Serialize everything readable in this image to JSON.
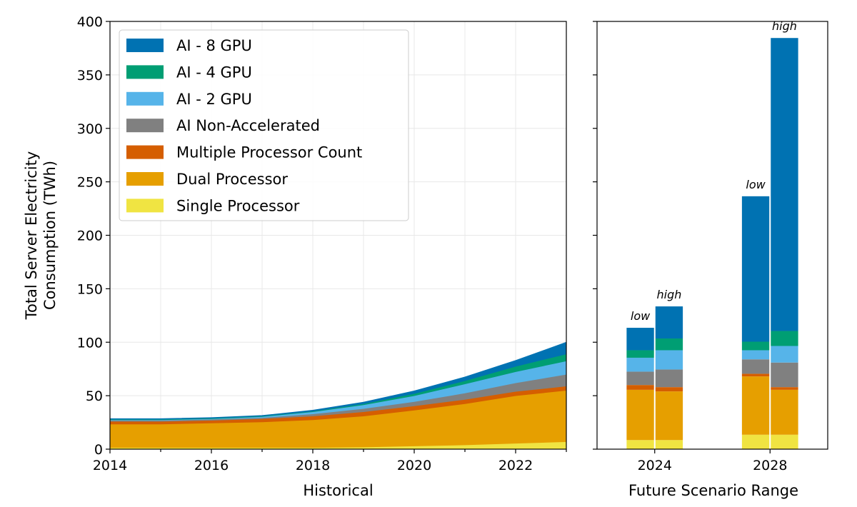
{
  "chart_data": [
    {
      "type": "area",
      "stacked": true,
      "xlabel": "Historical",
      "ylabel_line1": "Total Server Electricity",
      "ylabel_line2": "Consumption (TWh)",
      "xlim": [
        2014,
        2023
      ],
      "ylim": [
        0,
        400
      ],
      "grid": true,
      "x_tick_values": [
        2014,
        2016,
        2018,
        2020,
        2022
      ],
      "x_tick_labels": [
        "2014",
        "2016",
        "2018",
        "2020",
        "2022"
      ],
      "y_tick_values": [
        0,
        50,
        100,
        150,
        200,
        250,
        300,
        350,
        400
      ],
      "y_tick_labels": [
        "0",
        "50",
        "100",
        "150",
        "200",
        "250",
        "300",
        "350",
        "400"
      ],
      "x": [
        2014,
        2015,
        2016,
        2017,
        2018,
        2019,
        2020,
        2021,
        2022,
        2023
      ],
      "series": [
        {
          "name": "Single Processor",
          "color": "#F0E442",
          "values": [
            1.5,
            1.5,
            1.5,
            1.5,
            1.5,
            2.0,
            3.0,
            4.0,
            5.5,
            7.0
          ]
        },
        {
          "name": "Dual Processor",
          "color": "#E69F00",
          "values": [
            22.0,
            22.0,
            23.0,
            24.0,
            26.0,
            29.0,
            33.5,
            38.5,
            44.5,
            48.0
          ]
        },
        {
          "name": "Multiple Processor Count",
          "color": "#D55E00",
          "values": [
            2.5,
            2.5,
            2.5,
            3.0,
            3.5,
            4.0,
            4.0,
            4.0,
            4.0,
            4.0
          ]
        },
        {
          "name": "AI Non-Accelerated",
          "color": "#808080",
          "values": [
            1.0,
            1.0,
            1.0,
            1.0,
            2.0,
            3.0,
            4.0,
            6.0,
            8.0,
            11.0
          ]
        },
        {
          "name": "AI - 2 GPU",
          "color": "#56B4E9",
          "values": [
            0.5,
            0.5,
            0.5,
            1.0,
            2.0,
            3.5,
            5.5,
            8.5,
            10.5,
            12.5
          ]
        },
        {
          "name": "AI - 4 GPU",
          "color": "#009E73",
          "values": [
            0.5,
            0.5,
            0.5,
            0.5,
            0.5,
            1.0,
            2.0,
            3.0,
            5.0,
            6.5
          ]
        },
        {
          "name": "AI - 8 GPU",
          "color": "#0072B2",
          "values": [
            0.5,
            0.5,
            0.5,
            0.5,
            1.0,
            1.5,
            2.5,
            3.5,
            5.5,
            11.0
          ]
        }
      ]
    },
    {
      "type": "bar",
      "stacked": true,
      "xlabel": "Future Scenario Range",
      "xlim": [
        2022,
        2030
      ],
      "ylim": [
        0,
        400
      ],
      "x_tick_values": [
        2024,
        2028
      ],
      "x_tick_labels": [
        "2024",
        "2028"
      ],
      "bars": [
        {
          "x": 2023.5,
          "label": "low",
          "values": [
            8.5,
            47,
            4.5,
            12.5,
            13,
            7,
            21
          ]
        },
        {
          "x": 2024.5,
          "label": "high",
          "values": [
            8.5,
            45.5,
            4,
            16.5,
            18,
            11,
            30
          ]
        },
        {
          "x": 2027.5,
          "label": "low",
          "values": [
            13.5,
            54.5,
            2.5,
            13.5,
            8.5,
            8,
            136
          ]
        },
        {
          "x": 2028.5,
          "label": "high",
          "values": [
            13.5,
            42,
            2.5,
            23,
            15.5,
            14,
            274
          ]
        }
      ],
      "series_order": [
        "Single Processor",
        "Dual Processor",
        "Multiple Processor Count",
        "AI Non-Accelerated",
        "AI - 2 GPU",
        "AI - 4 GPU",
        "AI - 8 GPU"
      ]
    }
  ],
  "legend": {
    "placement": "upper-left",
    "items": [
      {
        "label": "AI - 8 GPU",
        "color": "#0072B2"
      },
      {
        "label": "AI - 4 GPU",
        "color": "#009E73"
      },
      {
        "label": "AI - 2 GPU",
        "color": "#56B4E9"
      },
      {
        "label": "AI Non-Accelerated",
        "color": "#808080"
      },
      {
        "label": "Multiple Processor Count",
        "color": "#D55E00"
      },
      {
        "label": "Dual Processor",
        "color": "#E69F00"
      },
      {
        "label": "Single Processor",
        "color": "#F0E442"
      }
    ]
  }
}
